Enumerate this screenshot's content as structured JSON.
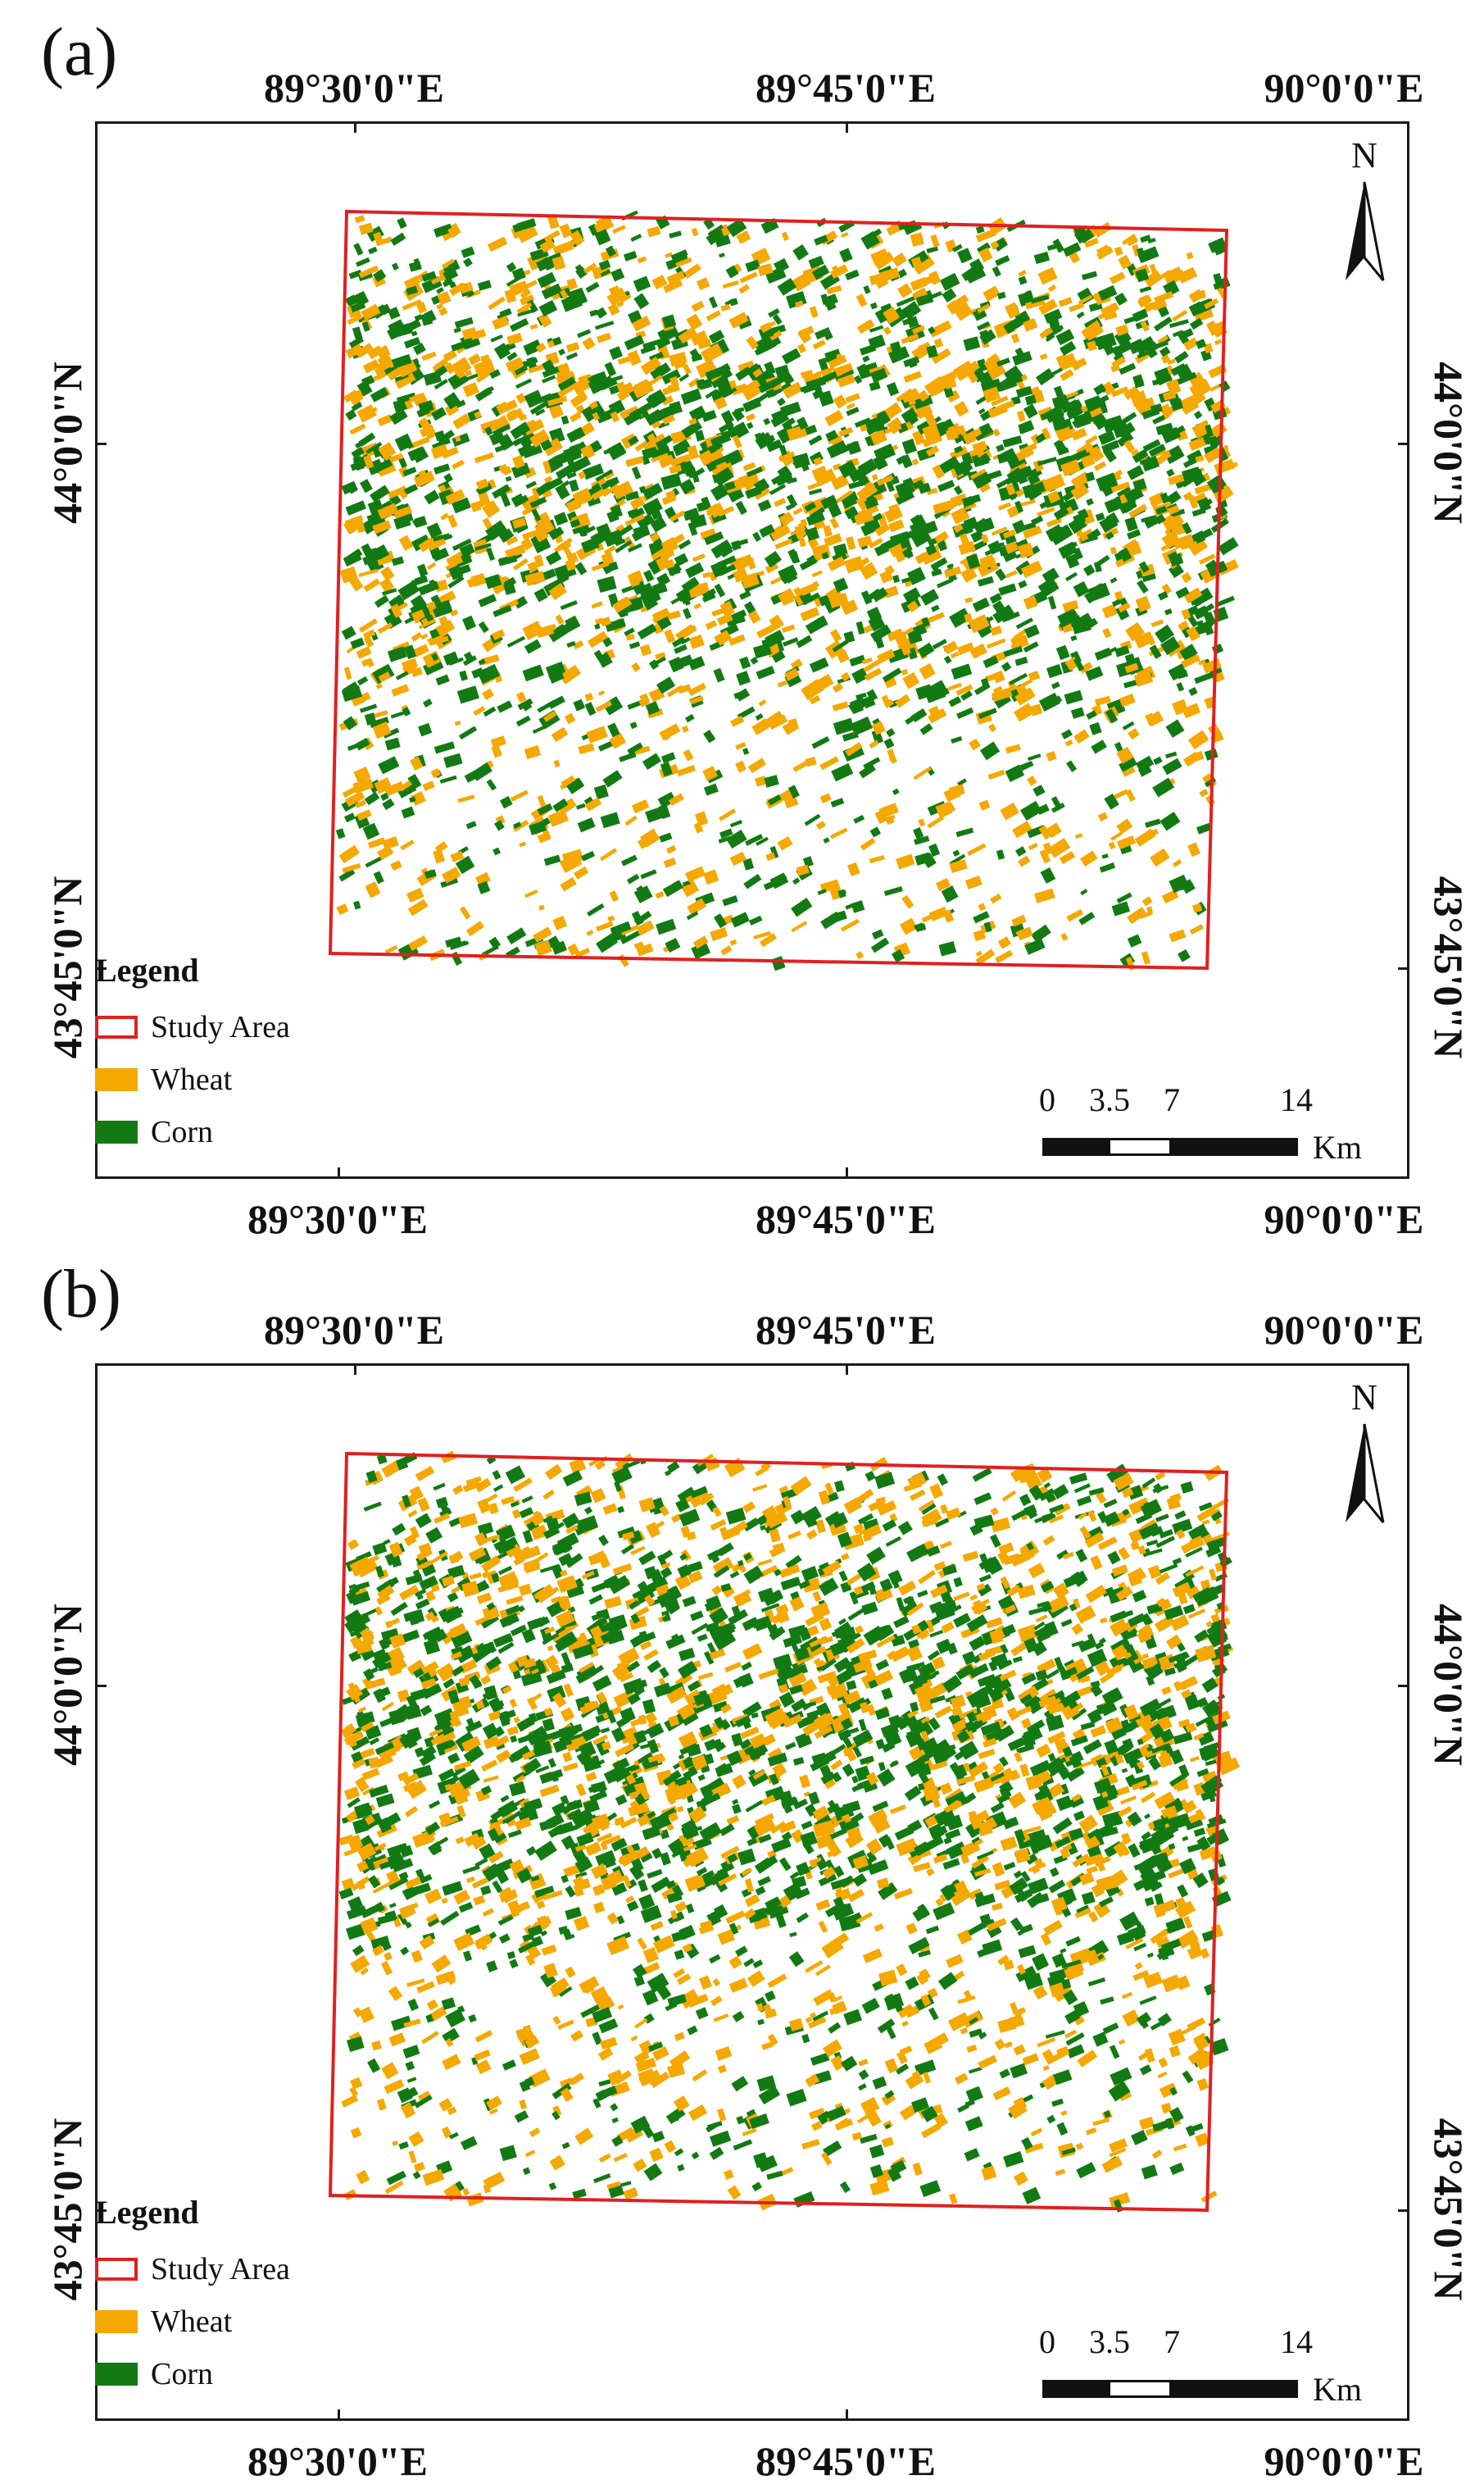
{
  "panels": [
    {
      "label": "(a)",
      "lon_labels": [
        "89°30'0\"E",
        "89°45'0\"E",
        "90°0'0\"E"
      ],
      "lat_labels": [
        "44°0'0\"N",
        "43°45'0\"N"
      ],
      "seed": 17
    },
    {
      "label": "(b)",
      "lon_labels": [
        "89°30'0\"E",
        "89°45'0\"E",
        "90°0'0\"E"
      ],
      "lat_labels": [
        "44°0'0\"N",
        "43°45'0\"N"
      ],
      "seed": 53
    }
  ],
  "legend": {
    "title": "Legend",
    "items": [
      {
        "label": "Study Area",
        "color": "#e02020",
        "kind": "outline"
      },
      {
        "label": "Wheat",
        "color": "#f5a800",
        "kind": "fill"
      },
      {
        "label": "Corn",
        "color": "#137a13",
        "kind": "fill"
      }
    ]
  },
  "scale": {
    "ticks": [
      "0",
      "3.5",
      "7",
      "14"
    ],
    "unit": "Km"
  },
  "north_arrow": {
    "letter": "N",
    "icon": "north-arrow-icon"
  },
  "colors": {
    "study_area": "#e02020",
    "wheat": "#f5a800",
    "corn": "#137a13",
    "frame": "#1a1a1a"
  }
}
